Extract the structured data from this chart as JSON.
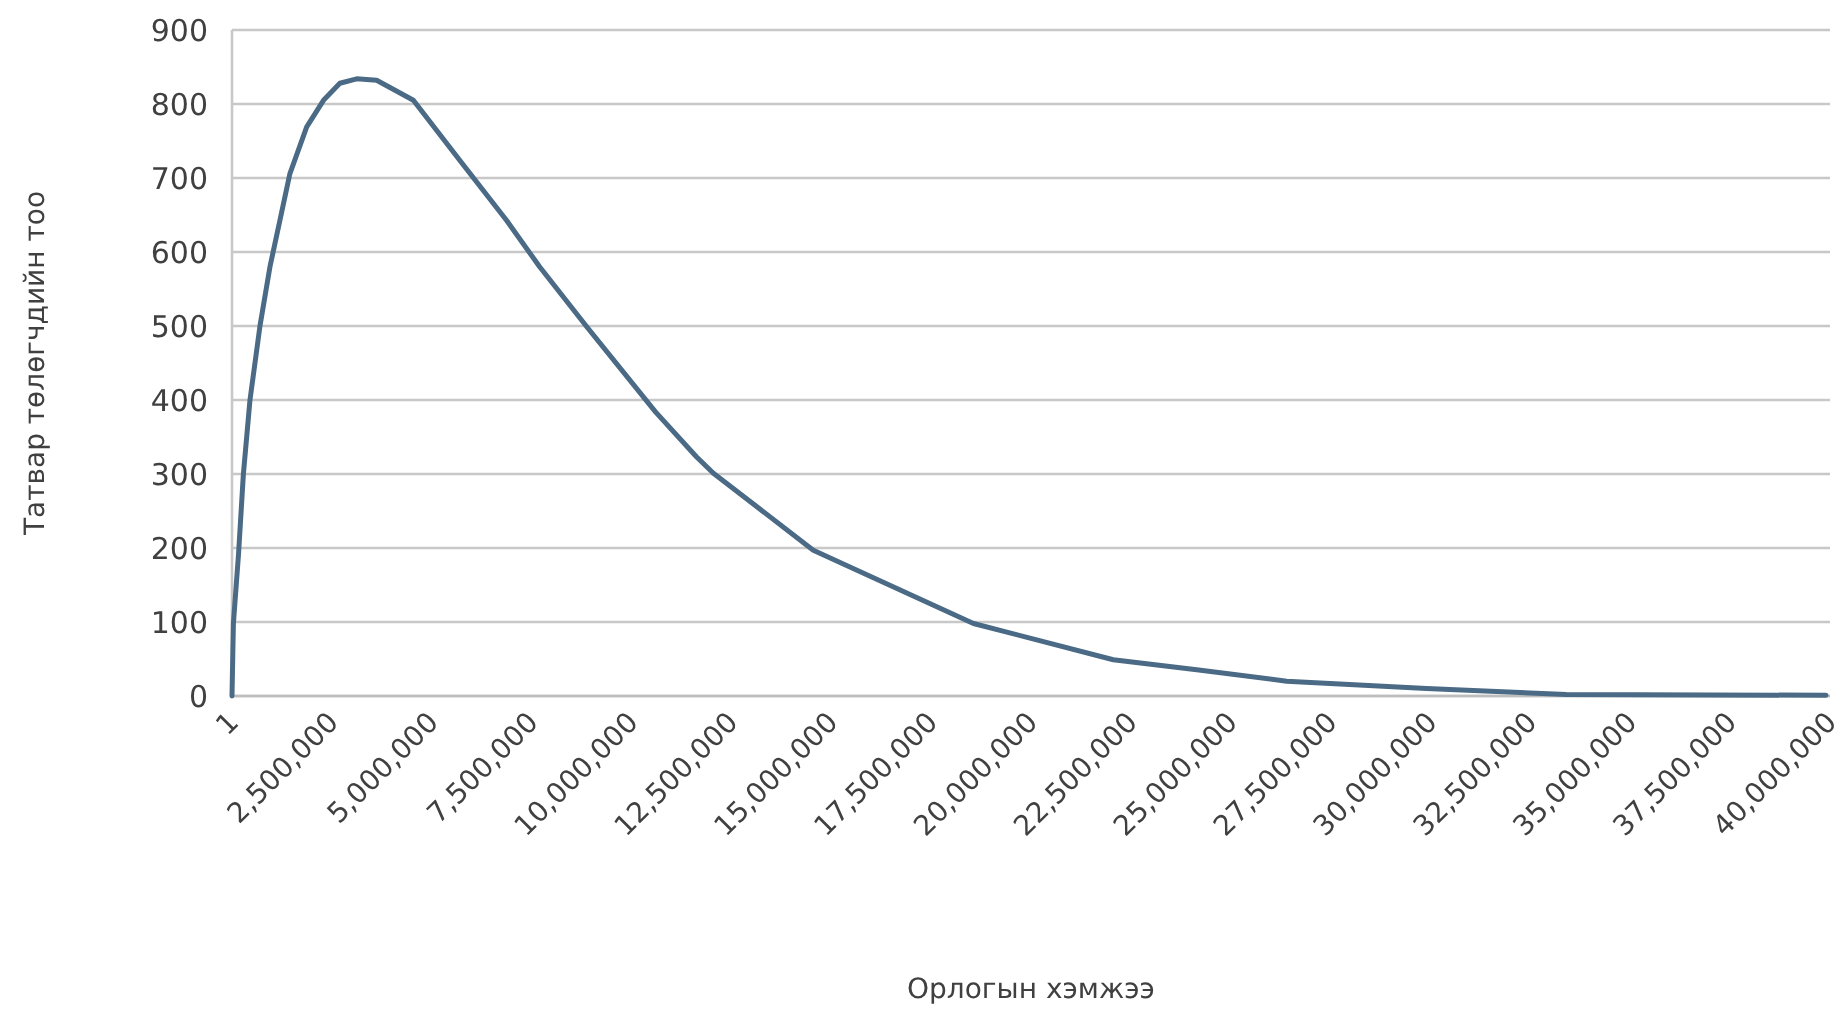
{
  "chart_data": {
    "type": "line",
    "xlabel": "Орлогын хэмжээ",
    "ylabel": "Татвар төлөгчдийн тоо",
    "x": [
      1,
      35000,
      165000,
      285000,
      450000,
      700000,
      950000,
      1200000,
      1450000,
      1870000,
      2290000,
      2700000,
      3120000,
      3620000,
      4540000,
      5700000,
      6870000,
      7700000,
      8880000,
      10600000,
      11630000,
      12050000,
      14550000,
      18560000,
      22060000,
      24200000,
      26400000,
      29900000,
      33400000,
      39900000
    ],
    "series": [
      {
        "color": "#4a6a85",
        "values": [
          0,
          98,
          193,
          300,
          400,
          500,
          580,
          643,
          706,
          769,
          805,
          828,
          834,
          832,
          805,
          724,
          643,
          580,
          499,
          384,
          323,
          301,
          197,
          98,
          49,
          35,
          20,
          10,
          2,
          1
        ]
      }
    ],
    "xlim": [
      1,
      40000000
    ],
    "xticks": [
      1,
      {
        "value": 2500000,
        "label": "2,500,000"
      },
      {
        "value": 5000000,
        "label": "5,000,000"
      },
      {
        "value": 7500000,
        "label": "7,500,000"
      },
      {
        "value": 10000000,
        "label": "10,000,000"
      },
      {
        "value": 12500000,
        "label": "12,500,000"
      },
      {
        "value": 15000000,
        "label": "15,000,000"
      },
      {
        "value": 17500000,
        "label": "17,500,000"
      },
      {
        "value": 20000000,
        "label": "20,000,000"
      },
      {
        "value": 22500000,
        "label": "22,500,000"
      },
      {
        "value": 25000000,
        "label": "25,000,000"
      },
      {
        "value": 27500000,
        "label": "27,500,000"
      },
      {
        "value": 30000000,
        "label": "30,000,000"
      },
      {
        "value": 32500000,
        "label": "32,500,000"
      },
      {
        "value": 35000000,
        "label": "35,000,000"
      },
      {
        "value": 37500000,
        "label": "37,500,000"
      },
      {
        "value": 40000000,
        "label": "40,000,000"
      }
    ],
    "ylim": [
      0,
      900
    ],
    "yticks": [
      0,
      100,
      200,
      300,
      400,
      500,
      600,
      700,
      800,
      900
    ],
    "grid": "y",
    "marker": "none",
    "line_style": "solid"
  }
}
